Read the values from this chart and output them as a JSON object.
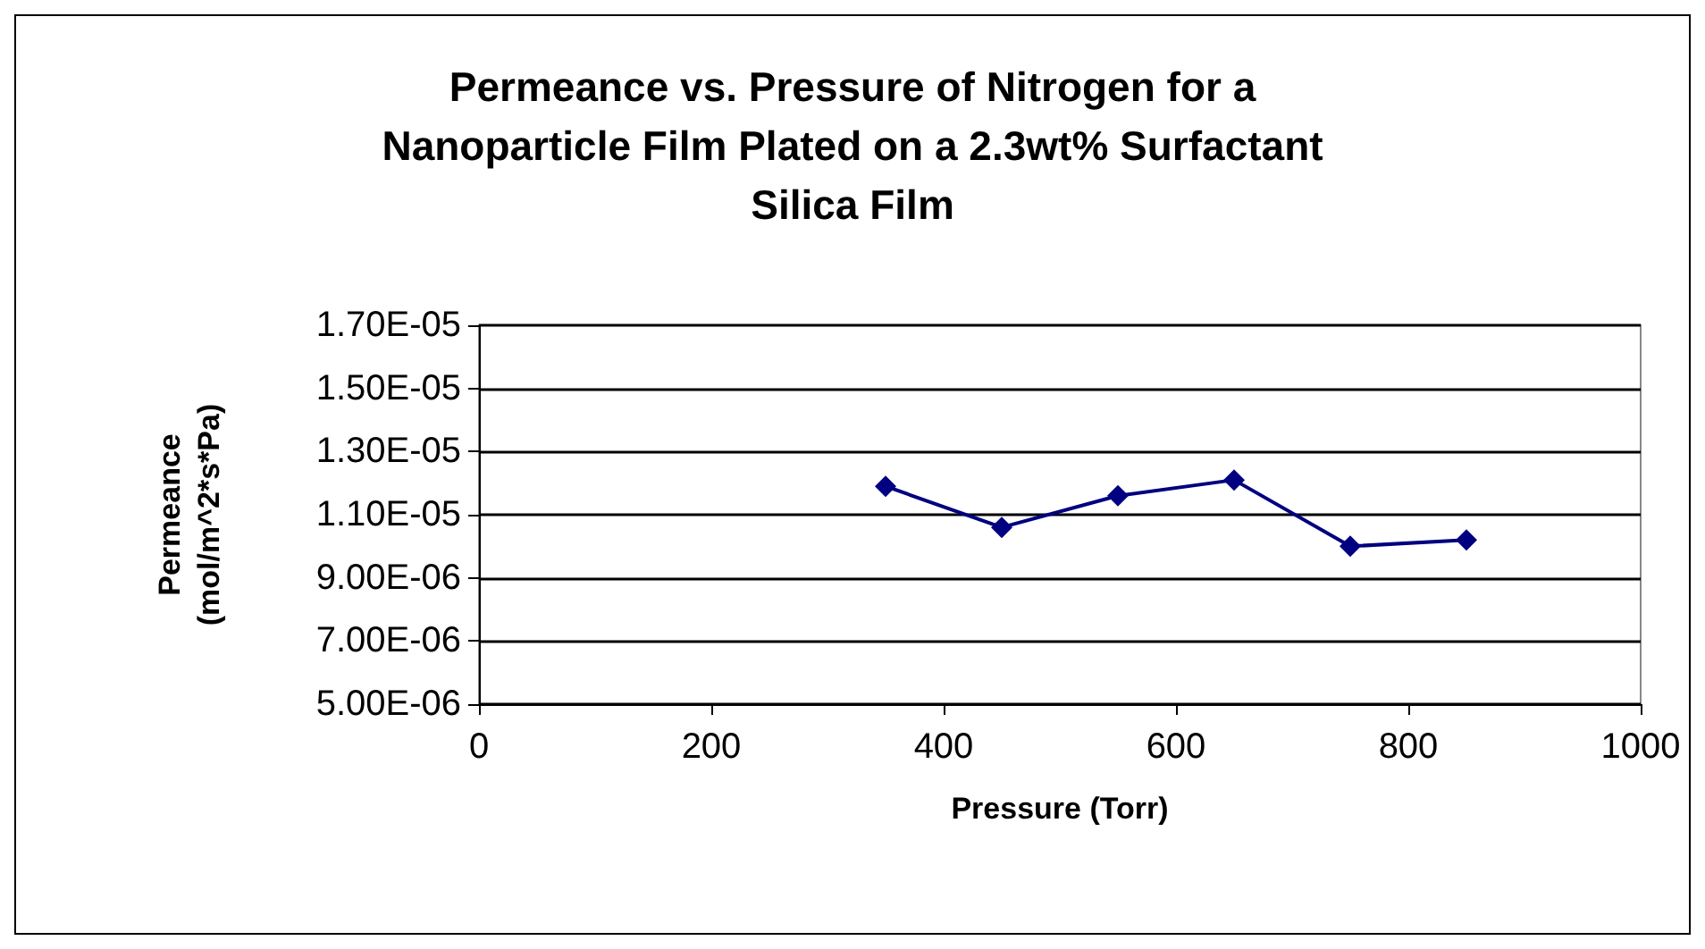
{
  "chart_data": {
    "type": "line",
    "title": "Permeance vs. Pressure of Nitrogen for a\nNanoparticle Film Plated on a 2.3wt% Surfactant\nSilica Film",
    "xlabel": "Pressure (Torr)",
    "ylabel": "Permeance\n(mol/m^2*s*Pa)",
    "x": [
      350,
      450,
      550,
      650,
      750,
      850
    ],
    "series": [
      {
        "color": "#000080",
        "values": [
          1.19e-05,
          1.06e-05,
          1.16e-05,
          1.21e-05,
          1e-05,
          1.02e-05
        ]
      }
    ],
    "xlim": [
      0,
      1000
    ],
    "xticks": [
      0,
      200,
      400,
      600,
      800,
      1000
    ],
    "ylim": [
      5e-06,
      1.7e-05
    ],
    "yticks": [
      {
        "value": 5e-06,
        "label": "5.00E-06"
      },
      {
        "value": 7e-06,
        "label": "7.00E-06"
      },
      {
        "value": 9e-06,
        "label": "9.00E-06"
      },
      {
        "value": 1.1e-05,
        "label": "1.10E-05"
      },
      {
        "value": 1.3e-05,
        "label": "1.30E-05"
      },
      {
        "value": 1.5e-05,
        "label": "1.50E-05"
      },
      {
        "value": 1.7e-05,
        "label": "1.70E-05"
      }
    ],
    "grid": "y",
    "marker": "diamond",
    "line_style": "solid"
  }
}
